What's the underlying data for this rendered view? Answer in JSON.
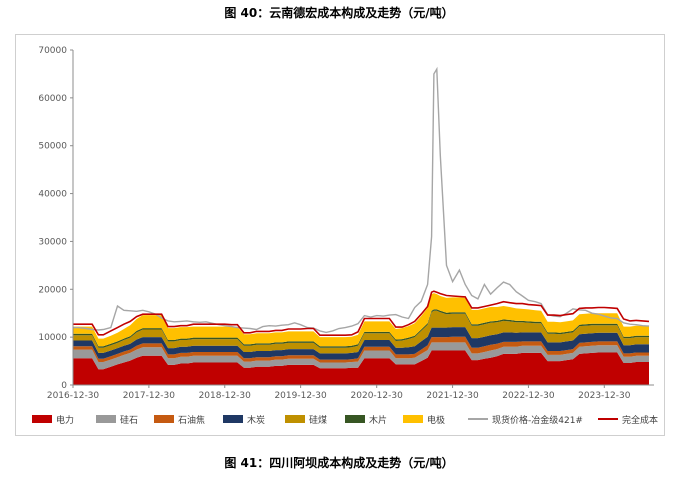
{
  "figure_title_top": "图 40：云南德宏成本构成及走势（元/吨）",
  "figure_title_bottom": "图 41：四川阿坝成本构成及走势（元/吨）",
  "chart_data": {
    "type": "area",
    "title": "",
    "xlabel": "",
    "ylabel": "",
    "ylim": [
      0,
      70000
    ],
    "yticks": [
      0,
      10000,
      20000,
      30000,
      40000,
      50000,
      60000,
      70000
    ],
    "xticks": [
      "2016-12-30",
      "2017-12-30",
      "2018-12-30",
      "2019-12-30",
      "2020-12-30",
      "2021-12-30",
      "2022-12-30",
      "2023-12-30"
    ],
    "x_dates": [
      "2016-12-30",
      "2017-01-27",
      "2017-03-03",
      "2017-04-01",
      "2017-05-01",
      "2017-05-25",
      "2017-06-30",
      "2017-08-01",
      "2017-09-01",
      "2017-10-01",
      "2017-11-01",
      "2017-12-01",
      "2017-12-30",
      "2018-02-01",
      "2018-03-01",
      "2018-04-01",
      "2018-05-01",
      "2018-06-01",
      "2018-07-01",
      "2018-08-01",
      "2018-09-01",
      "2018-10-01",
      "2018-11-01",
      "2018-12-01",
      "2018-12-30",
      "2019-02-01",
      "2019-03-01",
      "2019-04-01",
      "2019-05-01",
      "2019-06-01",
      "2019-07-01",
      "2019-08-01",
      "2019-09-01",
      "2019-10-01",
      "2019-11-01",
      "2019-12-01",
      "2019-12-30",
      "2020-02-01",
      "2020-03-01",
      "2020-04-01",
      "2020-05-01",
      "2020-06-01",
      "2020-07-01",
      "2020-08-01",
      "2020-09-01",
      "2020-10-01",
      "2020-11-01",
      "2020-12-01",
      "2020-12-30",
      "2021-02-01",
      "2021-03-01",
      "2021-04-01",
      "2021-05-01",
      "2021-06-01",
      "2021-07-01",
      "2021-08-01",
      "2021-09-01",
      "2021-09-20",
      "2021-10-01",
      "2021-10-15",
      "2021-11-01",
      "2021-12-01",
      "2021-12-30",
      "2022-02-01",
      "2022-03-01",
      "2022-04-01",
      "2022-05-01",
      "2022-06-01",
      "2022-07-01",
      "2022-08-01",
      "2022-09-01",
      "2022-10-01",
      "2022-11-01",
      "2022-12-01",
      "2022-12-30",
      "2023-02-01",
      "2023-03-01",
      "2023-04-01",
      "2023-05-01",
      "2023-06-01",
      "2023-07-01",
      "2023-08-01",
      "2023-09-01",
      "2023-10-01",
      "2023-11-01",
      "2023-12-01",
      "2023-12-30",
      "2024-02-01",
      "2024-03-01",
      "2024-04-01",
      "2024-05-01",
      "2024-06-01",
      "2024-07-01",
      "2024-08-01"
    ],
    "series": [
      {
        "name": "电力",
        "kind": "stacked-area",
        "color": "#c00000",
        "values": [
          5600,
          5600,
          5600,
          5600,
          3300,
          3300,
          3800,
          4300,
          4700,
          5100,
          5700,
          6100,
          6100,
          6100,
          6100,
          4200,
          4200,
          4500,
          4500,
          4700,
          4700,
          4700,
          4700,
          4700,
          4700,
          4700,
          4700,
          3600,
          3600,
          3800,
          3800,
          3800,
          4000,
          4000,
          4200,
          4200,
          4200,
          4200,
          4200,
          3500,
          3500,
          3500,
          3500,
          3500,
          3600,
          3600,
          5600,
          5600,
          5600,
          5600,
          5600,
          4300,
          4300,
          4300,
          4300,
          5000,
          5700,
          7200,
          7200,
          7200,
          7200,
          7200,
          7200,
          7200,
          7200,
          5200,
          5200,
          5500,
          5700,
          6000,
          6500,
          6500,
          6500,
          6700,
          6700,
          6700,
          6700,
          5000,
          5000,
          5000,
          5200,
          5400,
          6500,
          6600,
          6700,
          6800,
          6800,
          6800,
          6800,
          4600,
          4600,
          4800,
          4800,
          4800
        ]
      },
      {
        "name": "硅石",
        "kind": "stacked-area",
        "color": "#999999",
        "values": [
          1800,
          1800,
          1800,
          1800,
          1500,
          1500,
          1500,
          1500,
          1600,
          1600,
          1700,
          1800,
          1800,
          1800,
          1800,
          1400,
          1400,
          1400,
          1400,
          1400,
          1400,
          1400,
          1400,
          1400,
          1400,
          1400,
          1400,
          1300,
          1300,
          1300,
          1300,
          1300,
          1300,
          1300,
          1300,
          1300,
          1300,
          1300,
          1300,
          1200,
          1200,
          1200,
          1200,
          1200,
          1200,
          1300,
          1600,
          1600,
          1600,
          1600,
          1600,
          1300,
          1300,
          1300,
          1400,
          1500,
          1600,
          1700,
          1700,
          1700,
          1700,
          1700,
          1700,
          1700,
          1700,
          1400,
          1400,
          1400,
          1500,
          1500,
          1500,
          1500,
          1500,
          1500,
          1500,
          1500,
          1500,
          1300,
          1300,
          1300,
          1300,
          1300,
          1500,
          1500,
          1500,
          1500,
          1500,
          1500,
          1500,
          1300,
          1300,
          1300,
          1300,
          1300
        ]
      },
      {
        "name": "石油焦",
        "kind": "stacked-area",
        "color": "#c55a11",
        "values": [
          700,
          700,
          700,
          700,
          700,
          700,
          700,
          700,
          700,
          700,
          800,
          800,
          800,
          800,
          800,
          800,
          800,
          800,
          800,
          800,
          800,
          800,
          800,
          800,
          800,
          800,
          800,
          700,
          700,
          700,
          700,
          700,
          700,
          700,
          700,
          700,
          700,
          700,
          700,
          600,
          600,
          600,
          600,
          600,
          600,
          700,
          800,
          800,
          800,
          800,
          800,
          800,
          800,
          800,
          800,
          900,
          1000,
          1100,
          1100,
          1100,
          1100,
          1100,
          1200,
          1200,
          1200,
          1200,
          1200,
          1200,
          1200,
          1100,
          1000,
          1000,
          1000,
          900,
          900,
          900,
          900,
          800,
          800,
          800,
          800,
          800,
          800,
          800,
          800,
          800,
          800,
          800,
          800,
          700,
          700,
          700,
          700,
          700
        ]
      },
      {
        "name": "木炭",
        "kind": "stacked-area",
        "color": "#1f3864",
        "values": [
          1200,
          1200,
          1200,
          1200,
          1200,
          1200,
          1200,
          1200,
          1200,
          1200,
          1300,
          1300,
          1300,
          1300,
          1300,
          1300,
          1300,
          1300,
          1300,
          1300,
          1300,
          1300,
          1300,
          1300,
          1300,
          1300,
          1300,
          1300,
          1300,
          1300,
          1300,
          1300,
          1300,
          1300,
          1300,
          1300,
          1300,
          1300,
          1300,
          1300,
          1300,
          1300,
          1300,
          1300,
          1300,
          1300,
          1400,
          1400,
          1400,
          1400,
          1400,
          1400,
          1400,
          1500,
          1600,
          1700,
          1800,
          2000,
          2000,
          2000,
          2000,
          2000,
          2000,
          2000,
          2000,
          2000,
          2000,
          2000,
          2000,
          2000,
          2000,
          2000,
          1900,
          1900,
          1900,
          1900,
          1900,
          1800,
          1800,
          1800,
          1800,
          1800,
          1800,
          1800,
          1800,
          1800,
          1800,
          1800,
          1800,
          1700,
          1700,
          1700,
          1700,
          1700
        ]
      },
      {
        "name": "硅煤",
        "kind": "stacked-area",
        "color": "#bf9000",
        "values": [
          1100,
          1100,
          1100,
          1100,
          1100,
          1100,
          1100,
          1100,
          1200,
          1300,
          1500,
          1600,
          1600,
          1600,
          1600,
          1400,
          1400,
          1400,
          1400,
          1400,
          1400,
          1400,
          1400,
          1400,
          1400,
          1400,
          1400,
          1300,
          1300,
          1300,
          1300,
          1300,
          1300,
          1300,
          1300,
          1300,
          1300,
          1300,
          1300,
          1200,
          1200,
          1200,
          1200,
          1200,
          1200,
          1300,
          1400,
          1400,
          1400,
          1400,
          1400,
          1400,
          1500,
          1700,
          1900,
          2200,
          2500,
          3200,
          3500,
          3500,
          3200,
          2800,
          2800,
          2800,
          2800,
          2600,
          2600,
          2600,
          2600,
          2500,
          2400,
          2300,
          2200,
          2100,
          2000,
          1900,
          1900,
          1800,
          1800,
          1700,
          1700,
          1700,
          1700,
          1700,
          1700,
          1600,
          1600,
          1600,
          1600,
          1500,
          1500,
          1500,
          1500,
          1500
        ]
      },
      {
        "name": "木片",
        "kind": "stacked-area",
        "color": "#375623",
        "values": [
          300,
          300,
          300,
          300,
          300,
          300,
          300,
          300,
          300,
          300,
          300,
          300,
          300,
          300,
          300,
          300,
          300,
          300,
          300,
          300,
          300,
          300,
          300,
          300,
          300,
          300,
          300,
          300,
          300,
          300,
          300,
          300,
          300,
          300,
          300,
          300,
          300,
          300,
          300,
          300,
          300,
          300,
          300,
          300,
          300,
          300,
          300,
          300,
          300,
          300,
          300,
          300,
          300,
          300,
          300,
          300,
          300,
          300,
          300,
          300,
          300,
          300,
          300,
          300,
          300,
          300,
          300,
          300,
          300,
          300,
          300,
          300,
          300,
          300,
          300,
          300,
          300,
          300,
          300,
          300,
          300,
          300,
          300,
          300,
          300,
          300,
          300,
          300,
          300,
          300,
          300,
          300,
          300,
          300
        ]
      },
      {
        "name": "电极",
        "kind": "stacked-area",
        "color": "#ffc000",
        "values": [
          1500,
          1500,
          1500,
          1500,
          1600,
          1600,
          1700,
          1800,
          2000,
          2300,
          2500,
          2700,
          2700,
          2700,
          2700,
          2500,
          2500,
          2400,
          2400,
          2300,
          2300,
          2300,
          2300,
          2300,
          2300,
          2300,
          2300,
          2100,
          2100,
          2100,
          2100,
          2100,
          2100,
          2100,
          2100,
          2100,
          2100,
          2100,
          2100,
          1900,
          1900,
          1900,
          1900,
          1900,
          1900,
          2000,
          2200,
          2200,
          2200,
          2200,
          2200,
          2200,
          2300,
          2400,
          2600,
          2800,
          3200,
          3500,
          3400,
          3200,
          3100,
          3100,
          3100,
          3100,
          3000,
          3000,
          3000,
          3000,
          3000,
          2900,
          2800,
          2700,
          2600,
          2500,
          2500,
          2400,
          2300,
          2200,
          2200,
          2200,
          2200,
          2200,
          2200,
          2200,
          2200,
          2200,
          2200,
          2200,
          2200,
          2100,
          2100,
          2100,
          2100,
          2100
        ]
      },
      {
        "name": "现货价格-冶金级421#",
        "kind": "line",
        "color": "#a6a6a6",
        "values": [
          12000,
          12000,
          11800,
          11600,
          11500,
          11600,
          12000,
          16500,
          15600,
          15500,
          15400,
          15600,
          15300,
          14800,
          14000,
          13400,
          13200,
          13300,
          13400,
          13200,
          13100,
          13200,
          12900,
          12600,
          12400,
          12200,
          12000,
          11900,
          11800,
          11600,
          12200,
          12400,
          12300,
          12500,
          12600,
          13000,
          12600,
          12000,
          11900,
          11300,
          11000,
          11300,
          11800,
          12000,
          12300,
          12800,
          14500,
          14200,
          14500,
          14400,
          14600,
          14700,
          14200,
          13900,
          16200,
          17500,
          21000,
          31000,
          65000,
          66000,
          48000,
          25000,
          21600,
          24000,
          21000,
          18700,
          18000,
          21000,
          19000,
          20300,
          21500,
          21000,
          19500,
          18600,
          17700,
          17400,
          17000,
          14700,
          14400,
          14300,
          15000,
          15900,
          15700,
          15600,
          15000,
          14800,
          14400,
          14000,
          13900,
          13000,
          12700,
          12600,
          12400,
          12300
        ]
      },
      {
        "name": "完全成本",
        "kind": "line",
        "color": "#c00000",
        "values": [
          12700,
          12700,
          12700,
          12700,
          10500,
          10500,
          11300,
          12000,
          12700,
          13300,
          14300,
          14800,
          14800,
          14800,
          14800,
          12200,
          12200,
          12400,
          12400,
          12700,
          12700,
          12700,
          12700,
          12700,
          12700,
          12600,
          12600,
          10900,
          10900,
          11200,
          11200,
          11200,
          11400,
          11400,
          11700,
          11700,
          11700,
          11800,
          11800,
          10400,
          10400,
          10400,
          10400,
          10400,
          10500,
          11100,
          13900,
          13900,
          13900,
          13900,
          13900,
          12100,
          12100,
          12600,
          13300,
          14800,
          16400,
          19400,
          19600,
          19400,
          19100,
          18700,
          18600,
          18500,
          18400,
          16100,
          16100,
          16400,
          16700,
          17000,
          17400,
          17200,
          17000,
          17000,
          16800,
          16700,
          16600,
          14600,
          14600,
          14500,
          14700,
          14900,
          16000,
          16100,
          16100,
          16200,
          16200,
          16100,
          16000,
          13800,
          13400,
          13500,
          13400,
          13300
        ]
      }
    ],
    "legend_position": "bottom",
    "grid": false
  }
}
